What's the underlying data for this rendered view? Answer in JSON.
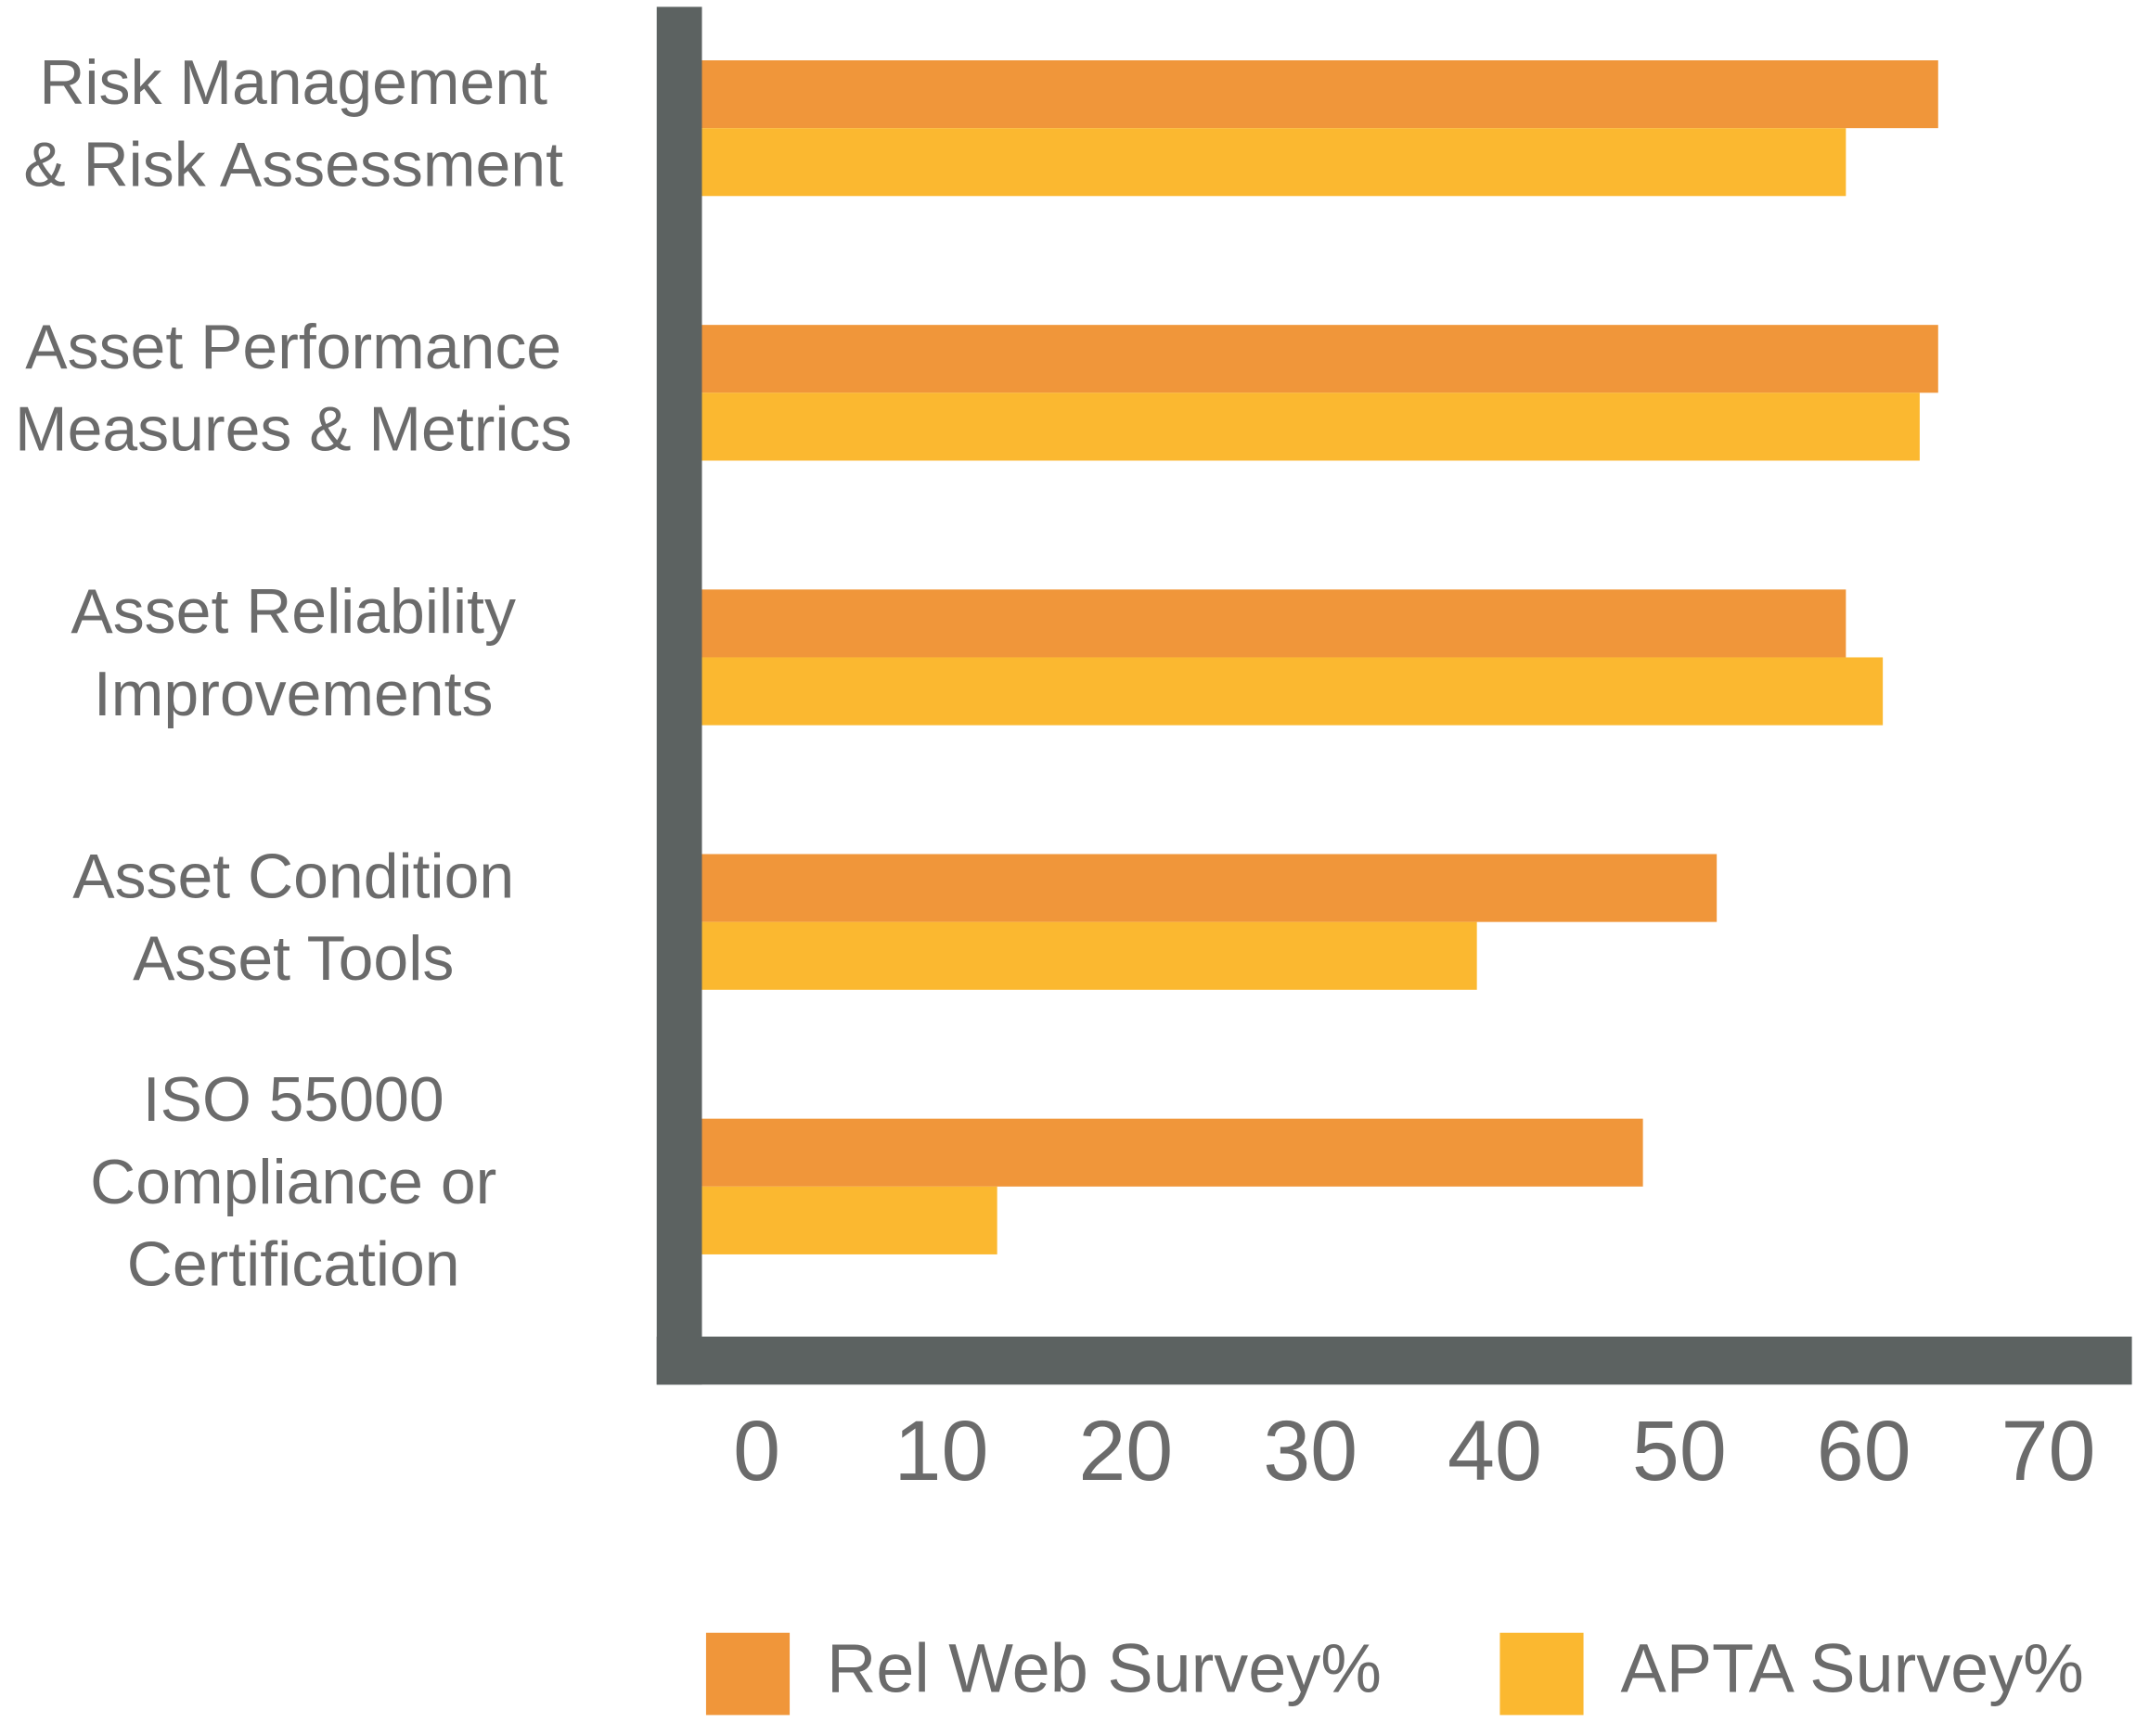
{
  "chart_data": {
    "type": "bar",
    "orientation": "horizontal",
    "categories": [
      "Risk Management\n& Risk Assessment",
      "Asset Performance\nMeasures & Metrics",
      "Asset Reliability\nImprovements",
      "Asset Condition\nAsset Tools",
      "ISO 55000\nCompliance or\nCertification"
    ],
    "series": [
      {
        "name": "Rel Web Survey%",
        "color": "#f0963a",
        "values": [
          67,
          67,
          62,
          55,
          51
        ]
      },
      {
        "name": "APTA Survey%",
        "color": "#fbb830",
        "values": [
          62,
          66,
          64,
          42,
          16
        ]
      }
    ],
    "xlim": [
      0,
      77.5
    ],
    "xticks": [
      0,
      10,
      20,
      30,
      40,
      50,
      60,
      70
    ],
    "axis_color": "#5c6261",
    "legend": "bottom"
  }
}
